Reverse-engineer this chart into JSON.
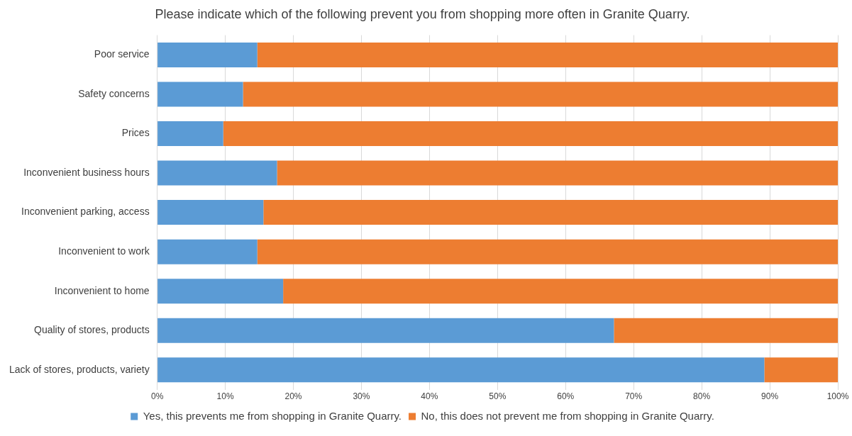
{
  "chart_data": {
    "type": "bar",
    "orientation": "horizontal",
    "stacked": true,
    "title": "Please indicate which of the following prevent you from shopping more often in Granite Quarry.",
    "categories": [
      "Poor service",
      "Safety concerns",
      "Prices",
      "Inconvenient business hours",
      "Inconvenient parking, access",
      "Inconvenient to work",
      "Inconvenient to home",
      "Quality of stores, products",
      "Lack of stores, products, variety"
    ],
    "series": [
      {
        "name": "Yes, this prevents me from shopping in Granite Quarry.",
        "color": "#5b9bd5",
        "values": [
          14.7,
          12.6,
          9.7,
          17.6,
          15.6,
          14.7,
          18.5,
          67.1,
          89.2
        ]
      },
      {
        "name": "No, this does not prevent me from shopping in Granite Quarry.",
        "color": "#ed7d31",
        "values": [
          85.3,
          87.4,
          90.3,
          82.4,
          84.4,
          85.3,
          81.5,
          32.9,
          10.8
        ]
      }
    ],
    "xlim": [
      0,
      100
    ],
    "xticks": [
      {
        "value": 0,
        "label": "0%"
      },
      {
        "value": 10,
        "label": "10%"
      },
      {
        "value": 20,
        "label": "20%"
      },
      {
        "value": 30,
        "label": "30%"
      },
      {
        "value": 40,
        "label": "40%"
      },
      {
        "value": 50,
        "label": "50%"
      },
      {
        "value": 60,
        "label": "60%"
      },
      {
        "value": 70,
        "label": "70%"
      },
      {
        "value": 80,
        "label": "80%"
      },
      {
        "value": 90,
        "label": "90%"
      },
      {
        "value": 100,
        "label": "100%"
      }
    ],
    "grid": "x",
    "legend": "bottom"
  }
}
